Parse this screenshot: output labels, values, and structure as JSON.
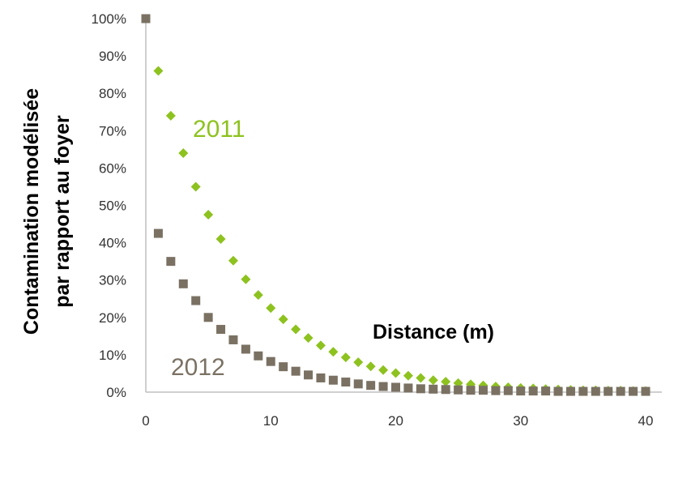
{
  "chart_data": {
    "type": "scatter",
    "title": "",
    "xlabel": "Distance (m)",
    "ylabel_lines": [
      "Contamination modélisée",
      "par rapport au foyer"
    ],
    "xlim": [
      0,
      40
    ],
    "ylim": [
      0,
      1
    ],
    "xticks": [
      "0",
      "10",
      "20",
      "30",
      "40"
    ],
    "yticks": [
      "0%",
      "10%",
      "20%",
      "30%",
      "40%",
      "50%",
      "60%",
      "70%",
      "80%",
      "90%",
      "100%"
    ],
    "grid": false,
    "series": [
      {
        "name": "2011",
        "color": "#8dc21f",
        "marker": "diamond",
        "x": [
          1,
          2,
          3,
          4,
          5,
          6,
          7,
          8,
          9,
          10,
          11,
          12,
          13,
          14,
          15,
          16,
          17,
          18,
          19,
          20,
          21,
          22,
          23,
          24,
          25,
          26,
          27,
          28,
          29,
          30,
          31,
          32,
          33,
          34,
          35,
          36,
          37,
          38,
          39,
          40
        ],
        "y": [
          0.86,
          0.74,
          0.64,
          0.55,
          0.475,
          0.41,
          0.352,
          0.302,
          0.26,
          0.225,
          0.195,
          0.168,
          0.145,
          0.125,
          0.108,
          0.093,
          0.08,
          0.069,
          0.059,
          0.051,
          0.044,
          0.038,
          0.032,
          0.028,
          0.024,
          0.021,
          0.018,
          0.015,
          0.013,
          0.011,
          0.01,
          0.008,
          0.007,
          0.006,
          0.005,
          0.005,
          0.004,
          0.004,
          0.003,
          0.003
        ]
      },
      {
        "name": "2012",
        "color": "#7a7163",
        "marker": "square",
        "x": [
          0,
          1,
          2,
          3,
          4,
          5,
          6,
          7,
          8,
          9,
          10,
          11,
          12,
          13,
          14,
          15,
          16,
          17,
          18,
          19,
          20,
          21,
          22,
          23,
          24,
          25,
          26,
          27,
          28,
          29,
          30,
          31,
          32,
          33,
          34,
          35,
          36,
          37,
          38,
          39,
          40
        ],
        "y": [
          1.0,
          0.425,
          0.35,
          0.29,
          0.245,
          0.2,
          0.168,
          0.14,
          0.115,
          0.097,
          0.082,
          0.068,
          0.056,
          0.046,
          0.038,
          0.032,
          0.027,
          0.022,
          0.018,
          0.015,
          0.013,
          0.011,
          0.009,
          0.008,
          0.007,
          0.006,
          0.005,
          0.005,
          0.004,
          0.004,
          0.003,
          0.003,
          0.003,
          0.002,
          0.002,
          0.002,
          0.002,
          0.002,
          0.002,
          0.002,
          0.002
        ]
      }
    ]
  }
}
